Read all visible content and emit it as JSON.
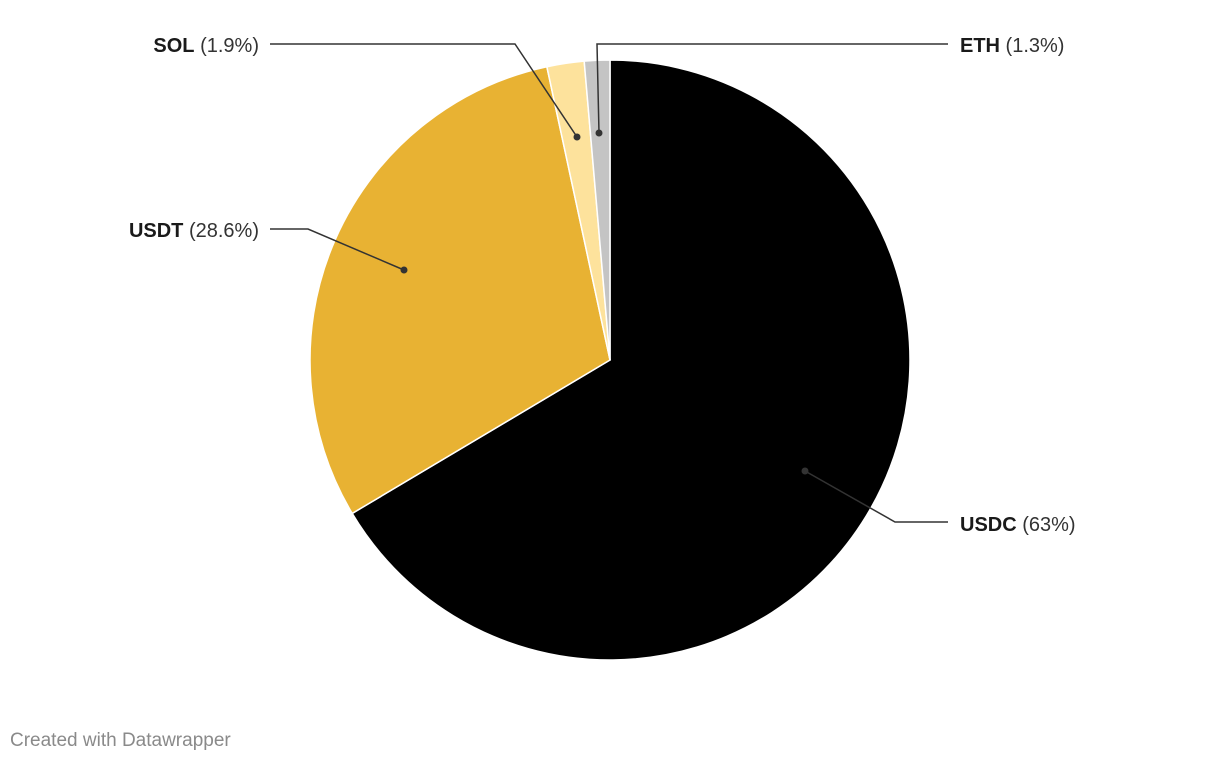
{
  "chart_data": {
    "type": "pie",
    "slices": [
      {
        "label": "USDC",
        "value": 63,
        "value_text": "(63%)",
        "color": "#000000"
      },
      {
        "label": "USDT",
        "value": 28.6,
        "value_text": "(28.6%)",
        "color": "#e8b233"
      },
      {
        "label": "SOL",
        "value": 1.9,
        "value_text": "(1.9%)",
        "color": "#fde29c"
      },
      {
        "label": "ETH",
        "value": 1.3,
        "value_text": "(1.3%)",
        "color": "#c4c4c4"
      }
    ],
    "start": "12 o'clock",
    "direction": "clockwise",
    "labels": "outside with leader lines"
  },
  "footer": {
    "credit": "Created with Datawrapper"
  }
}
